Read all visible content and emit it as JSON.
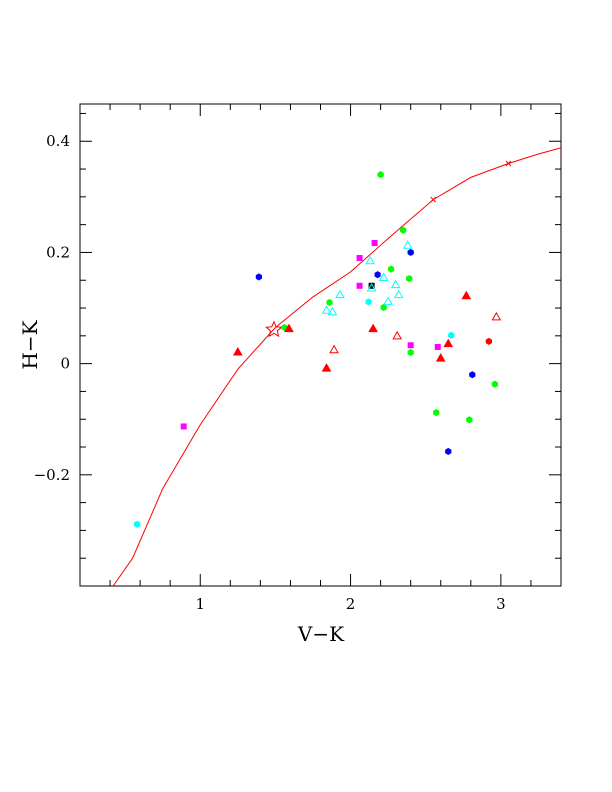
{
  "chart_data": {
    "type": "scatter",
    "title": "",
    "xlabel": "V−K",
    "ylabel": "H−K",
    "xlim": [
      0.2,
      3.4
    ],
    "ylim": [
      -0.4,
      0.467
    ],
    "x_ticks": [
      {
        "value": 1,
        "label": "1"
      },
      {
        "value": 2,
        "label": "2"
      },
      {
        "value": 3,
        "label": "3"
      }
    ],
    "y_ticks": [
      {
        "value": -0.2,
        "label": "−0.2"
      },
      {
        "value": 0,
        "label": "0"
      },
      {
        "value": 0.2,
        "label": "0.2"
      },
      {
        "value": 0.4,
        "label": "0.4"
      }
    ],
    "x_minor_step": 0.2,
    "y_minor_step": 0.05,
    "grid": false,
    "legend": "none",
    "curve": {
      "color": "#ff0000",
      "points": [
        [
          0.42,
          -0.4
        ],
        [
          0.55,
          -0.35
        ],
        [
          0.75,
          -0.225
        ],
        [
          1.0,
          -0.11
        ],
        [
          1.25,
          -0.01
        ],
        [
          1.5,
          0.065
        ],
        [
          1.75,
          0.12
        ],
        [
          2.0,
          0.165
        ],
        [
          2.25,
          0.225
        ],
        [
          2.55,
          0.295
        ],
        [
          2.8,
          0.335
        ],
        [
          3.05,
          0.36
        ],
        [
          3.25,
          0.377
        ],
        [
          3.4,
          0.388
        ]
      ],
      "markers": [
        [
          2.55,
          0.295
        ],
        [
          3.05,
          0.36
        ]
      ]
    },
    "star": {
      "x": 1.49,
      "y": 0.061,
      "color": "#ff0000"
    },
    "series": [
      {
        "marker": "hexagon",
        "color": "#00ff00",
        "points": [
          [
            2.2,
            0.34
          ],
          [
            2.35,
            0.24
          ],
          [
            2.27,
            0.17
          ],
          [
            2.39,
            0.153
          ],
          [
            1.86,
            0.11
          ],
          [
            2.22,
            0.101
          ],
          [
            1.56,
            0.065
          ],
          [
            2.4,
            0.02
          ],
          [
            2.96,
            -0.037
          ],
          [
            2.57,
            -0.088
          ],
          [
            2.79,
            -0.101
          ]
        ]
      },
      {
        "marker": "hexagon",
        "color": "#0000ff",
        "points": [
          [
            2.4,
            0.2
          ],
          [
            1.39,
            0.156
          ],
          [
            2.18,
            0.16
          ],
          [
            2.81,
            -0.02
          ],
          [
            2.65,
            -0.158
          ]
        ]
      },
      {
        "marker": "hexagon",
        "color": "#00ffff",
        "points": [
          [
            2.12,
            0.111
          ],
          [
            2.67,
            0.051
          ],
          [
            0.58,
            -0.289
          ]
        ]
      },
      {
        "marker": "hexagon",
        "color": "#ff0000",
        "points": [
          [
            2.92,
            0.04
          ]
        ]
      },
      {
        "marker": "square",
        "color": "#ff00ff",
        "points": [
          [
            2.06,
            0.19
          ],
          [
            2.16,
            0.217
          ],
          [
            2.06,
            0.14
          ],
          [
            0.89,
            -0.113
          ],
          [
            2.4,
            0.033
          ],
          [
            2.58,
            0.03
          ]
        ]
      },
      {
        "marker": "square",
        "color": "#000000",
        "points": [
          [
            2.14,
            0.14
          ]
        ]
      },
      {
        "marker": "triangle-filled",
        "color": "#ff0000",
        "points": [
          [
            1.25,
            0.021
          ],
          [
            1.59,
            0.063
          ],
          [
            1.84,
            -0.008
          ],
          [
            2.15,
            0.063
          ],
          [
            2.77,
            0.122
          ],
          [
            2.6,
            0.01
          ],
          [
            2.65,
            0.036
          ]
        ]
      },
      {
        "marker": "triangle-open",
        "color": "#ff0000",
        "points": [
          [
            1.89,
            0.025
          ],
          [
            2.31,
            0.05
          ],
          [
            2.97,
            0.084
          ]
        ]
      },
      {
        "marker": "triangle-open",
        "color": "#00ffff",
        "points": [
          [
            2.13,
            0.185
          ],
          [
            2.38,
            0.213
          ],
          [
            2.22,
            0.155
          ],
          [
            2.3,
            0.142
          ],
          [
            2.14,
            0.136
          ],
          [
            2.32,
            0.124
          ],
          [
            2.25,
            0.112
          ],
          [
            1.93,
            0.124
          ],
          [
            1.84,
            0.096
          ],
          [
            1.88,
            0.093
          ]
        ]
      }
    ]
  }
}
